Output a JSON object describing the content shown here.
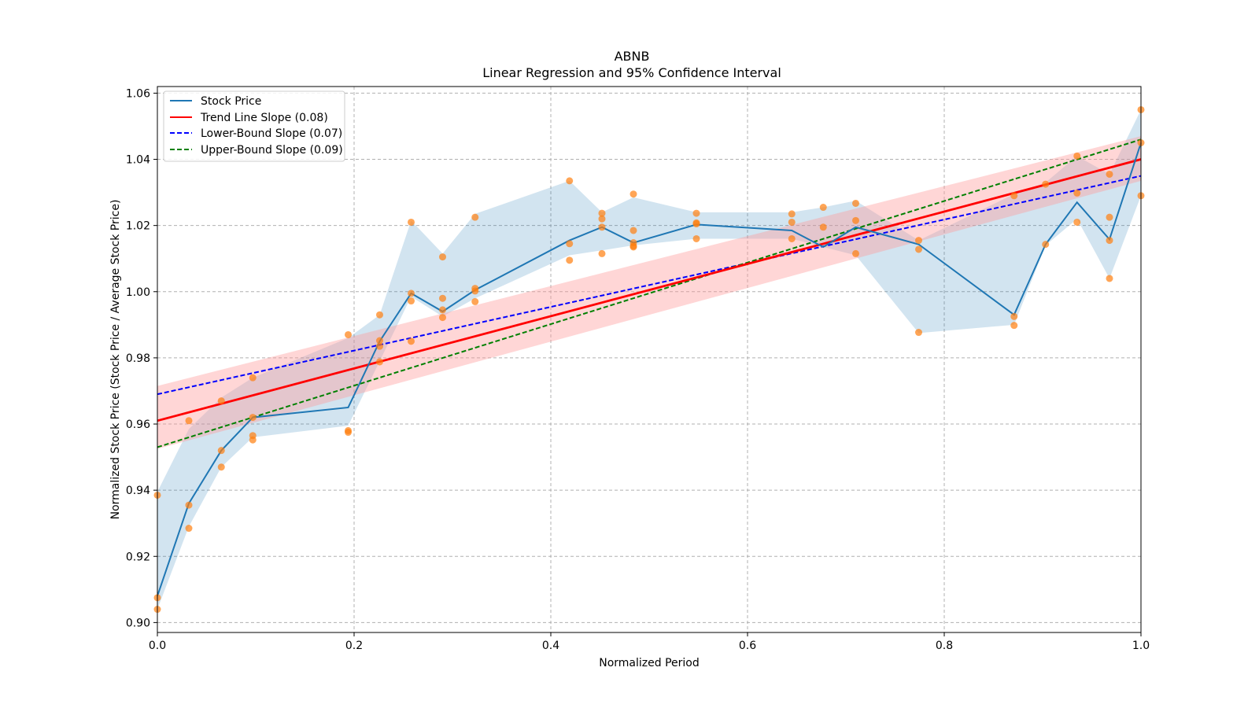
{
  "chart_data": {
    "type": "line",
    "title": "ABNB",
    "subtitle": "Linear Regression and 95% Confidence Interval",
    "xlabel": "Normalized Period",
    "ylabel": "Normalized Stock Price (Stock Price / Average Stock Price)",
    "xlim": [
      0.0,
      1.0
    ],
    "ylim": [
      0.897,
      1.062
    ],
    "xticks": [
      0.0,
      0.2,
      0.4,
      0.6,
      0.8,
      1.0
    ],
    "xtick_labels": [
      "0.0",
      "0.2",
      "0.4",
      "0.6",
      "0.8",
      "1.0"
    ],
    "yticks": [
      0.9,
      0.92,
      0.94,
      0.96,
      0.98,
      1.0,
      1.02,
      1.04,
      1.06
    ],
    "ytick_labels": [
      "0.90",
      "0.92",
      "0.94",
      "0.96",
      "0.98",
      "1.00",
      "1.02",
      "1.04",
      "1.06"
    ],
    "grid": true,
    "legend_position": "top-left",
    "legend": [
      {
        "label": "Stock Price",
        "color": "#1f77b4",
        "style": "solid"
      },
      {
        "label": "Trend Line Slope (0.08)",
        "color": "#ff0000",
        "style": "solid"
      },
      {
        "label": "Lower-Bound Slope (0.07)",
        "color": "#0000ff",
        "style": "dashed"
      },
      {
        "label": "Upper-Bound Slope (0.09)",
        "color": "#008000",
        "style": "dashed"
      }
    ],
    "colors": {
      "stock_line": "#1f77b4",
      "stock_band": "#1f77b4",
      "trend": "#ff0000",
      "trend_band": "#ff9999",
      "lower": "#0000ff",
      "upper": "#008000",
      "points": "#ff7f0e"
    },
    "stock_series": {
      "name": "Stock Price",
      "x": [
        0.0,
        0.032,
        0.065,
        0.097,
        0.194,
        0.226,
        0.258,
        0.29,
        0.323,
        0.419,
        0.452,
        0.484,
        0.548,
        0.645,
        0.677,
        0.71,
        0.774,
        0.871,
        0.903,
        0.935,
        0.968,
        1.0
      ],
      "y": [
        0.908,
        0.936,
        0.952,
        0.962,
        0.965,
        0.985,
        0.9995,
        0.994,
        1.0005,
        1.0155,
        1.0195,
        1.0148,
        1.0203,
        1.0185,
        1.0135,
        1.0195,
        1.0143,
        0.993,
        1.0143,
        1.027,
        1.0158,
        1.045
      ],
      "band_lower": [
        0.904,
        0.929,
        0.947,
        0.956,
        0.9595,
        0.979,
        0.9985,
        0.9925,
        0.998,
        1.011,
        1.0125,
        1.014,
        1.016,
        1.016,
        1.0135,
        1.011,
        0.9875,
        0.99,
        1.014,
        1.022,
        1.004,
        1.029
      ],
      "band_upper": [
        0.9395,
        0.9585,
        0.968,
        0.974,
        0.986,
        0.993,
        1.0215,
        1.0115,
        1.0235,
        1.0335,
        1.024,
        1.0285,
        1.024,
        1.024,
        1.0255,
        1.0275,
        1.0155,
        1.0295,
        1.033,
        1.041,
        1.0355,
        1.055
      ]
    },
    "trend_line": {
      "label": "Trend Line Slope (0.08)",
      "slope": 0.079,
      "intercept": 0.961
    },
    "trend_band": {
      "lower": [
        0.9525,
        1.0335
      ],
      "upper": [
        0.9715,
        1.047
      ]
    },
    "lower_bound_line": {
      "label": "Lower-Bound Slope (0.07)",
      "slope": 0.066,
      "intercept": 0.969
    },
    "upper_bound_line": {
      "label": "Upper-Bound Slope (0.09)",
      "slope": 0.093,
      "intercept": 0.953
    },
    "scatter": {
      "x": [
        0.0,
        0.0,
        0.0,
        0.032,
        0.032,
        0.032,
        0.065,
        0.065,
        0.065,
        0.097,
        0.097,
        0.097,
        0.097,
        0.194,
        0.194,
        0.194,
        0.226,
        0.226,
        0.226,
        0.226,
        0.258,
        0.258,
        0.258,
        0.258,
        0.29,
        0.29,
        0.29,
        0.29,
        0.323,
        0.323,
        0.323,
        0.323,
        0.419,
        0.419,
        0.419,
        0.452,
        0.452,
        0.452,
        0.452,
        0.484,
        0.484,
        0.484,
        0.484,
        0.484,
        0.548,
        0.548,
        0.548,
        0.548,
        0.645,
        0.645,
        0.645,
        0.677,
        0.677,
        0.71,
        0.71,
        0.71,
        0.774,
        0.774,
        0.774,
        0.871,
        0.871,
        0.871,
        0.903,
        0.903,
        0.935,
        0.935,
        0.935,
        0.968,
        0.968,
        0.968,
        0.968,
        1.0,
        1.0,
        1.0
      ],
      "y": [
        0.9385,
        0.9075,
        0.904,
        0.961,
        0.9355,
        0.9285,
        0.967,
        0.952,
        0.947,
        0.974,
        0.962,
        0.9565,
        0.9552,
        0.987,
        0.958,
        0.9575,
        0.993,
        0.9852,
        0.9835,
        0.9788,
        1.021,
        0.9995,
        0.9972,
        0.985,
        1.0105,
        0.998,
        0.9945,
        0.9922,
        1.0225,
        1.001,
        1.0002,
        0.997,
        1.0335,
        1.0145,
        1.0095,
        1.0237,
        1.022,
        1.0195,
        1.0115,
        1.0295,
        1.0185,
        1.0148,
        1.0138,
        1.0135,
        1.0237,
        1.0208,
        1.0205,
        1.016,
        1.0235,
        1.021,
        1.016,
        1.0255,
        1.0195,
        1.0267,
        1.0215,
        1.0115,
        1.0155,
        1.0128,
        0.9877,
        1.029,
        0.9925,
        0.9898,
        1.0325,
        1.0143,
        1.041,
        1.0298,
        1.021,
        1.0355,
        1.0225,
        1.0155,
        1.004,
        1.055,
        1.045,
        1.029
      ]
    }
  }
}
